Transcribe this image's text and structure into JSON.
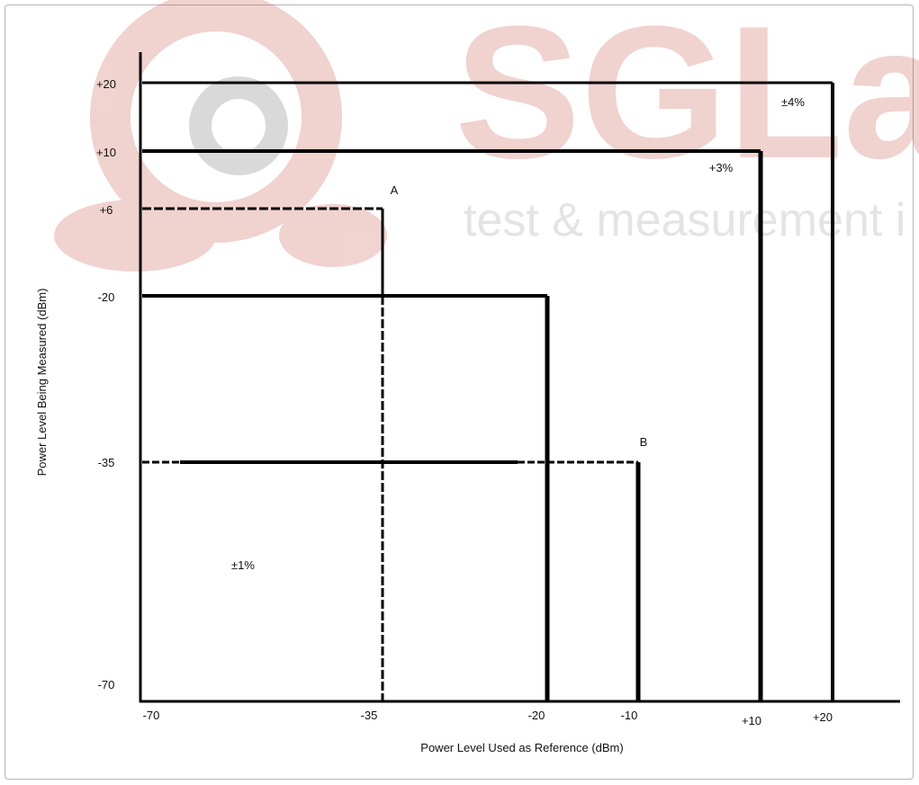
{
  "chart_data": {
    "type": "line",
    "xlabel": "Power Level Used as Reference (dBm)",
    "ylabel": "Power Level Being Measured (dBm)",
    "x_ticks": [
      "-70",
      "-35",
      "-20",
      "-10",
      "+10",
      "+20"
    ],
    "y_ticks": [
      "+20",
      "+10",
      "+6",
      "-20",
      "-35",
      "-70"
    ],
    "boundaries": [
      {
        "corner_ref": 20,
        "corner_meas": 20,
        "style": "solid",
        "label": "±4%"
      },
      {
        "corner_ref": 10,
        "corner_meas": 10,
        "style": "solid",
        "label": "+3%"
      },
      {
        "corner_ref": -35,
        "corner_meas": 6,
        "style": "dashed",
        "label": "A"
      },
      {
        "corner_ref": -20,
        "corner_meas": -20,
        "style": "solid",
        "label": ""
      },
      {
        "corner_ref": -10,
        "corner_meas": -35,
        "style": "mixed",
        "label": "B"
      }
    ],
    "region_labels": [
      "±1%"
    ]
  },
  "watermark": {
    "brand": "SGLa",
    "tagline": "test & measurement i",
    "color": "#c0392b"
  }
}
